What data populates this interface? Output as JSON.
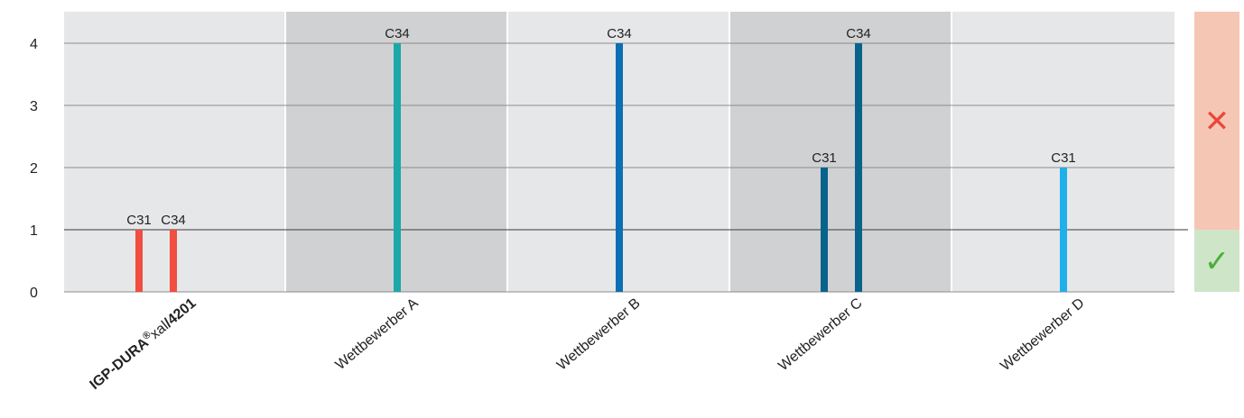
{
  "chart_data": {
    "type": "bar",
    "ylim": [
      0,
      4
    ],
    "y_ticks": [
      "0",
      "1",
      "2",
      "3",
      "4"
    ],
    "threshold": 1,
    "grid": true,
    "categories": [
      {
        "label_main": "IGP-DURA",
        "label_sup": "®",
        "label_mid": "xal",
        "label_tail": "4201",
        "shaded": false
      },
      {
        "label_main": "Wettbewerber A",
        "shaded": true
      },
      {
        "label_main": "Wettbewerber B",
        "shaded": false
      },
      {
        "label_main": "Wettbewerber C",
        "shaded": true
      },
      {
        "label_main": "Wettbewerber D",
        "shaded": false
      }
    ],
    "bars": [
      {
        "category": 0,
        "label": "C31",
        "value": 1,
        "color": "#f04e40"
      },
      {
        "category": 0,
        "label": "C34",
        "value": 1,
        "color": "#f04e40"
      },
      {
        "category": 1,
        "label": "C34",
        "value": 4,
        "color": "#1aa9a8"
      },
      {
        "category": 2,
        "label": "C34",
        "value": 4,
        "color": "#0d6fb5"
      },
      {
        "category": 3,
        "label": "C31",
        "value": 2,
        "color": "#08638c"
      },
      {
        "category": 3,
        "label": "C34",
        "value": 4,
        "color": "#08638c"
      },
      {
        "category": 4,
        "label": "C31",
        "value": 2,
        "color": "#1fb0ea"
      }
    ]
  },
  "legend": {
    "fail_icon": "cross-icon",
    "pass_icon": "check-icon",
    "fail_color": "#f6c6b4",
    "pass_color": "#cfe5c8",
    "fail_glyph": "✕",
    "pass_glyph": "✓",
    "fail_glyph_color": "#e8483b",
    "pass_glyph_color": "#4caf3c"
  },
  "colors": {
    "band_light": "#e6e7e9",
    "band_dark": "#d0d1d3"
  }
}
